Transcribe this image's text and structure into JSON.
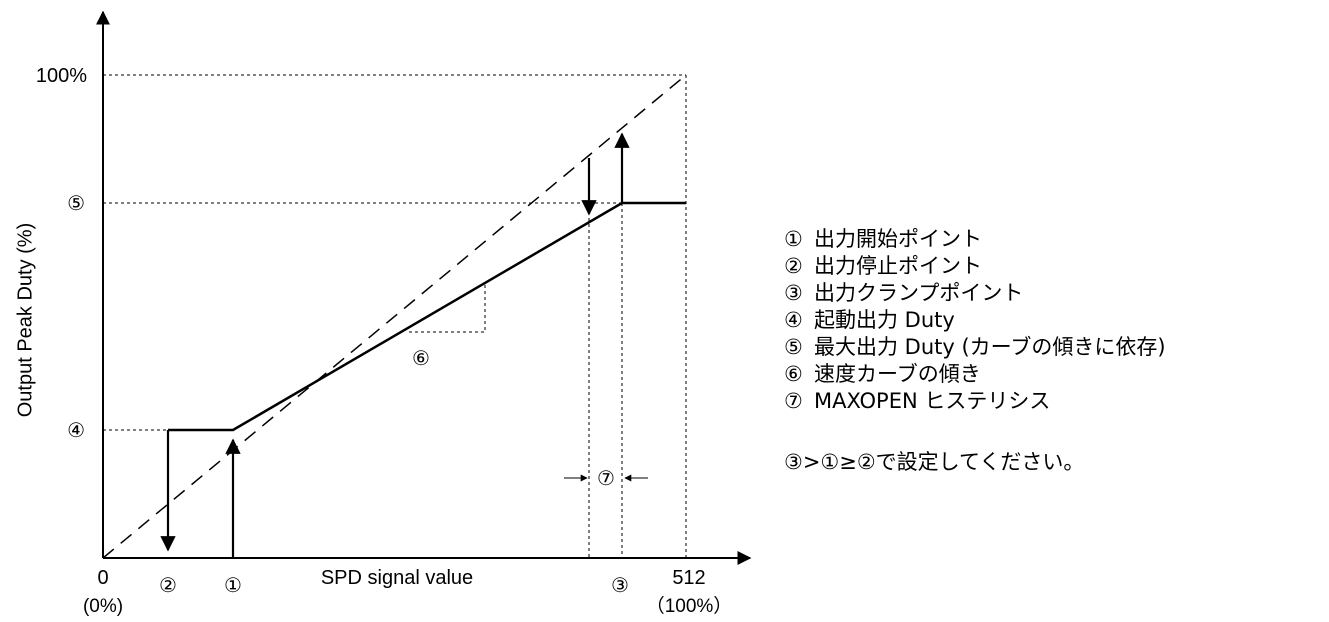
{
  "diagram": {
    "y_axis_label": "Output Peak Duty (%)",
    "x_axis_label": "SPD signal value",
    "y_ticks": {
      "top": "100%",
      "max_duty": "⑤",
      "start_duty": "④"
    },
    "x_ticks": {
      "zero": "0",
      "zero_pct": "(0%)",
      "stop_point": "②",
      "start_point": "①",
      "clamp_point": "③",
      "max": "512",
      "max_pct": "（100%）"
    },
    "slope_marker": "⑥",
    "hysteresis_marker": "⑦"
  },
  "legend": [
    {
      "num": "①",
      "text": "出力開始ポイント"
    },
    {
      "num": "②",
      "text": "出力停止ポイント"
    },
    {
      "num": "③",
      "text": "出力クランプポイント"
    },
    {
      "num": "④",
      "text": "起動出力 Duty"
    },
    {
      "num": "⑤",
      "text": "最大出力 Duty (カーブの傾きに依存)"
    },
    {
      "num": "⑥",
      "text": "速度カーブの傾き"
    },
    {
      "num": "⑦",
      "text": "MAXOPEN ヒステリシス"
    }
  ],
  "note": "③>①≥②で設定してください。"
}
